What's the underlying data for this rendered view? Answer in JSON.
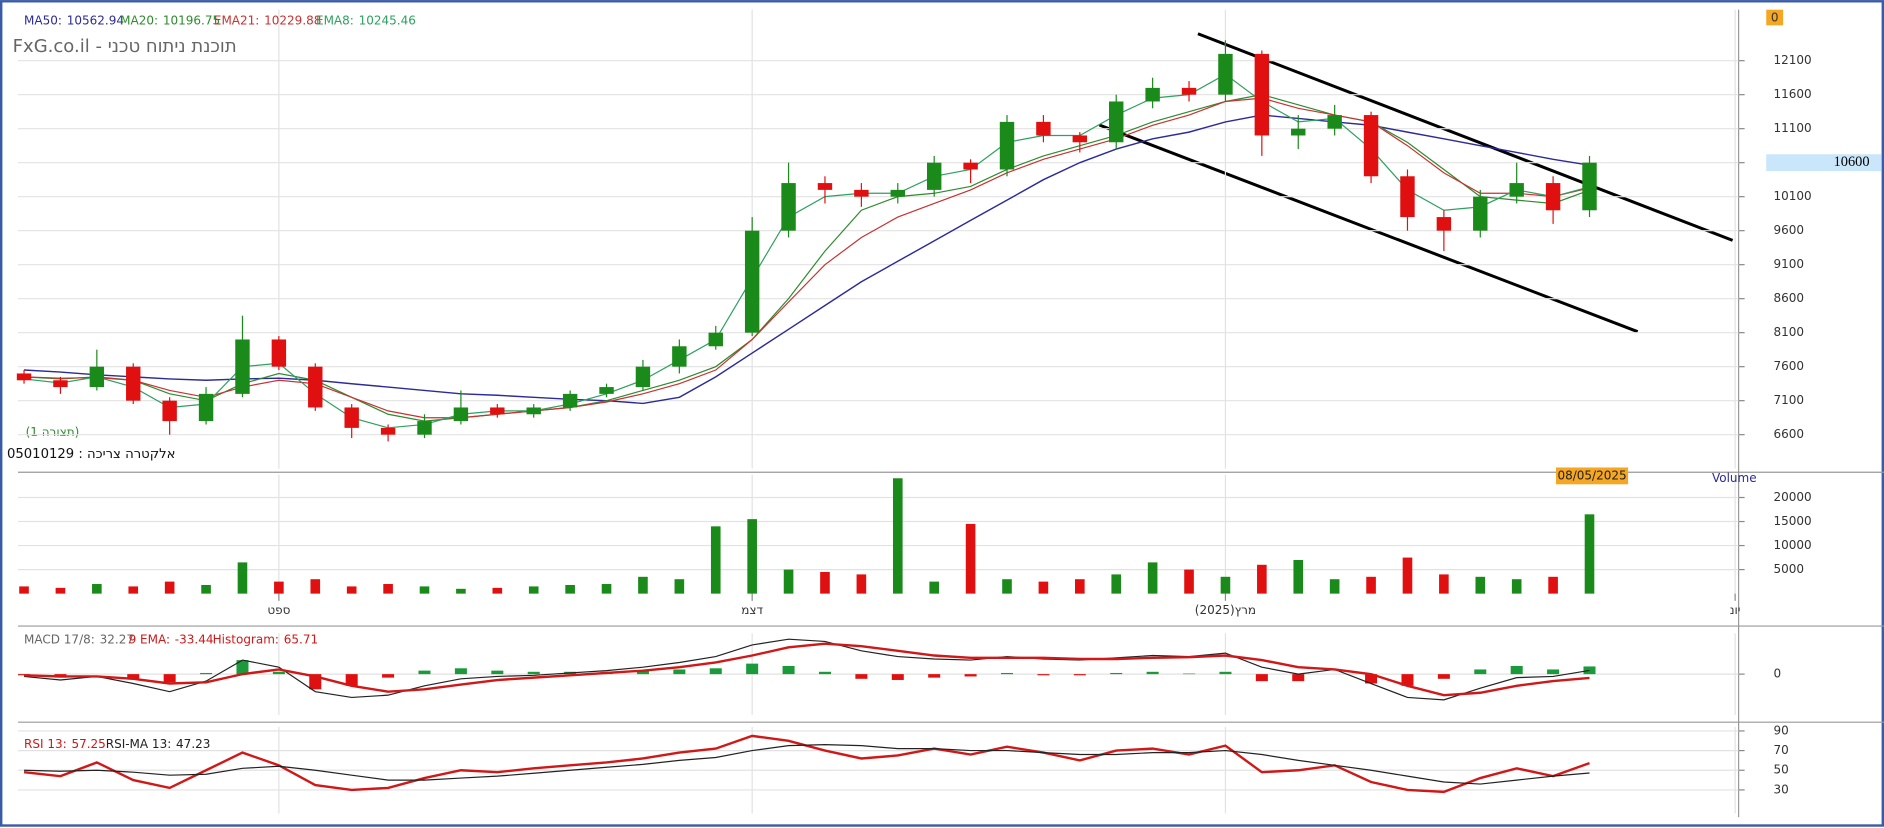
{
  "header": {
    "title": "FxG.co.il - תוכנת ניתוח טכני",
    "layout": "(תצורה 1)",
    "instrument": "אלקטרה צריכה : 05010129",
    "corner": "0",
    "last_date": "08/05/2025"
  },
  "chart_data": [
    {
      "type": "candlestick",
      "up_color": "#1a8a1a",
      "down_color": "#e01010",
      "grid": true,
      "categories": [
        null,
        null,
        null,
        null,
        null,
        null,
        null,
        "ספט",
        null,
        null,
        null,
        null,
        null,
        null,
        null,
        null,
        null,
        null,
        null,
        null,
        "דצמ",
        null,
        null,
        null,
        null,
        null,
        null,
        null,
        null,
        null,
        null,
        null,
        null,
        "מרץ(2025)",
        null,
        null,
        null,
        null,
        null,
        null,
        null,
        null,
        null,
        null,
        null,
        null,
        null,
        "יונ"
      ],
      "open": [
        7500,
        7400,
        7300,
        7600,
        7100,
        6800,
        7200,
        8000,
        7600,
        7000,
        6700,
        6600,
        6800,
        7000,
        6900,
        7000,
        7200,
        7300,
        7600,
        7900,
        8100,
        9600,
        10300,
        10200,
        10100,
        10200,
        10600,
        10500,
        11200,
        11000,
        10900,
        11500,
        11700,
        11600,
        12200,
        11000,
        11100,
        11300,
        10400,
        9800,
        9600,
        10100,
        10300,
        9900,
        null,
        null,
        null,
        null
      ],
      "high": [
        7550,
        7450,
        7850,
        7650,
        7150,
        7300,
        8350,
        8050,
        7650,
        7050,
        6750,
        6900,
        7250,
        7050,
        7050,
        7250,
        7350,
        7700,
        8000,
        8200,
        9800,
        10600,
        10400,
        10300,
        10300,
        10700,
        10650,
        11300,
        11300,
        11050,
        11600,
        11850,
        11800,
        12400,
        12250,
        11300,
        11450,
        11350,
        10500,
        9900,
        10200,
        10600,
        10400,
        10700,
        null,
        null,
        null,
        null
      ],
      "low": [
        7350,
        7200,
        7250,
        7050,
        6600,
        6750,
        7150,
        7550,
        6950,
        6550,
        6500,
        6550,
        6750,
        6850,
        6850,
        6950,
        7150,
        7250,
        7500,
        7850,
        8050,
        9500,
        10000,
        9950,
        10000,
        10100,
        10300,
        10400,
        10900,
        10750,
        10800,
        11400,
        11500,
        11500,
        10700,
        10800,
        11000,
        10300,
        9600,
        9300,
        9500,
        10000,
        9700,
        9800,
        null,
        null,
        null,
        null
      ],
      "close": [
        7400,
        7300,
        7600,
        7100,
        6800,
        7200,
        8000,
        7600,
        7000,
        6700,
        6600,
        6800,
        7000,
        6900,
        7000,
        7200,
        7300,
        7600,
        7900,
        8100,
        9600,
        10300,
        10200,
        10100,
        10200,
        10600,
        10500,
        11200,
        11000,
        10900,
        11500,
        11700,
        11600,
        12200,
        11000,
        11100,
        11300,
        10400,
        9800,
        9600,
        10100,
        10300,
        9900,
        10600,
        null,
        null,
        null,
        null
      ],
      "ylim": [
        6100,
        12850
      ],
      "yticks": [
        6600,
        7100,
        7600,
        8100,
        8600,
        9100,
        9600,
        10100,
        10600,
        11100,
        11600,
        12100
      ],
      "series": [
        {
          "name": "MA50:",
          "color": "#2b2b9a",
          "values": [
            7550,
            7520,
            7480,
            7450,
            7420,
            7400,
            7420,
            7430,
            7400,
            7350,
            7300,
            7250,
            7200,
            7180,
            7150,
            7120,
            7100,
            7060,
            7150,
            7450,
            7800,
            8150,
            8500,
            8850,
            9150,
            9450,
            9750,
            10050,
            10350,
            10600,
            10800,
            10950,
            11050,
            11200,
            11300,
            11250,
            11200,
            11150,
            11050,
            10950,
            10850,
            10750,
            10650,
            10562.94,
            null,
            null,
            null,
            null
          ]
        },
        {
          "name": "MA20:",
          "color": "#2e8b2e",
          "values": [
            7450,
            7420,
            7450,
            7400,
            7200,
            7100,
            7350,
            7500,
            7400,
            7150,
            6900,
            6800,
            6850,
            6900,
            6950,
            7000,
            7100,
            7250,
            7400,
            7600,
            8000,
            8600,
            9300,
            9900,
            10100,
            10150,
            10250,
            10500,
            10700,
            10850,
            11000,
            11200,
            11350,
            11500,
            11600,
            11450,
            11300,
            11200,
            10900,
            10500,
            10100,
            10050,
            10000,
            10196.75,
            null,
            null,
            null,
            null
          ]
        },
        {
          "name": "EMA21:",
          "color": "#c83232",
          "values": [
            7450,
            7430,
            7440,
            7400,
            7250,
            7150,
            7300,
            7400,
            7350,
            7150,
            6950,
            6850,
            6850,
            6900,
            6950,
            7000,
            7080,
            7200,
            7350,
            7550,
            8000,
            8550,
            9100,
            9500,
            9800,
            10000,
            10200,
            10450,
            10650,
            10800,
            10950,
            11150,
            11300,
            11500,
            11550,
            11400,
            11300,
            11200,
            10850,
            10450,
            10150,
            10150,
            10100,
            10229.88,
            null,
            null,
            null,
            null
          ]
        },
        {
          "name": "EMA8:",
          "color": "#2fa060",
          "values": [
            7420,
            7360,
            7450,
            7300,
            7000,
            7050,
            7600,
            7650,
            7200,
            6850,
            6700,
            6750,
            6900,
            6950,
            6950,
            7050,
            7200,
            7400,
            7700,
            8000,
            8900,
            9800,
            10100,
            10150,
            10150,
            10400,
            10500,
            10900,
            11000,
            11000,
            11300,
            11550,
            11600,
            11900,
            11500,
            11200,
            11250,
            10800,
            10200,
            9900,
            9950,
            10200,
            10100,
            10245.46,
            null,
            null,
            null,
            null
          ]
        }
      ]
    },
    {
      "type": "volume",
      "title": "Volume",
      "values": [
        1500,
        1200,
        2000,
        1500,
        2500,
        1800,
        6500,
        2500,
        3000,
        1500,
        2000,
        1500,
        1000,
        1200,
        1500,
        1800,
        2000,
        3500,
        3000,
        14000,
        15500,
        5000,
        4500,
        4000,
        24000,
        2500,
        14500,
        3000,
        2500,
        3000,
        4000,
        6500,
        5000,
        3500,
        6000,
        7000,
        3000,
        3500,
        7500,
        4000,
        3500,
        3000,
        3500,
        16500,
        null,
        null,
        null,
        null
      ],
      "ylim": [
        0,
        24750
      ],
      "yticks": [
        5000,
        10000,
        15000,
        20000
      ]
    },
    {
      "type": "macd",
      "ylim": [
        -350,
        350
      ],
      "yticks": [
        0
      ],
      "series": [
        {
          "name": "MACD 17/8:",
          "color": "#222222",
          "values": [
            -20,
            -50,
            -20,
            -80,
            -150,
            -60,
            120,
            60,
            -150,
            -200,
            -180,
            -100,
            -40,
            -20,
            -10,
            10,
            30,
            60,
            100,
            150,
            250,
            300,
            280,
            200,
            150,
            130,
            120,
            150,
            130,
            120,
            140,
            160,
            150,
            180,
            60,
            0,
            40,
            -80,
            -200,
            -220,
            -120,
            -30,
            -20,
            32.27,
            null,
            null,
            null,
            null
          ]
        },
        {
          "name": "9 EMA:",
          "color": "#d01818",
          "values": [
            -10,
            -20,
            -20,
            -40,
            -80,
            -70,
            0,
            40,
            -20,
            -100,
            -150,
            -130,
            -90,
            -50,
            -30,
            -10,
            10,
            30,
            60,
            100,
            160,
            230,
            260,
            240,
            200,
            160,
            140,
            140,
            140,
            130,
            130,
            140,
            145,
            160,
            120,
            60,
            40,
            0,
            -100,
            -180,
            -160,
            -100,
            -60,
            -33.44,
            null,
            null,
            null,
            null
          ]
        },
        {
          "name": "Histogram:",
          "color": "#d01818",
          "up_color": "#1a9a3a",
          "down_color": "#e01010",
          "values": [
            -10,
            -30,
            0,
            -40,
            -70,
            10,
            120,
            20,
            -130,
            -100,
            -30,
            30,
            50,
            30,
            20,
            20,
            20,
            30,
            40,
            50,
            90,
            70,
            20,
            -40,
            -50,
            -30,
            -20,
            10,
            -10,
            -10,
            10,
            20,
            5,
            20,
            -60,
            -60,
            0,
            -80,
            -100,
            -40,
            40,
            70,
            40,
            65.71,
            null,
            null,
            null,
            null
          ]
        }
      ]
    },
    {
      "type": "line",
      "ylim": [
        6,
        94
      ],
      "yticks": [
        30,
        50,
        70,
        90
      ],
      "series": [
        {
          "name": "RSI 13:",
          "color": "#d01818",
          "values": [
            48,
            44,
            58,
            40,
            32,
            50,
            68,
            55,
            35,
            30,
            32,
            42,
            50,
            48,
            52,
            55,
            58,
            62,
            68,
            72,
            85,
            80,
            70,
            62,
            65,
            72,
            66,
            74,
            68,
            60,
            70,
            72,
            66,
            75,
            48,
            50,
            55,
            38,
            30,
            28,
            42,
            52,
            44,
            57.25,
            null,
            null,
            null,
            null
          ]
        },
        {
          "name": "RSI-MA 13:",
          "color": "#222222",
          "values": [
            50,
            49,
            50,
            48,
            45,
            46,
            52,
            54,
            50,
            45,
            40,
            40,
            42,
            44,
            47,
            50,
            53,
            56,
            60,
            63,
            70,
            75,
            76,
            75,
            72,
            72,
            70,
            70,
            68,
            66,
            66,
            68,
            68,
            70,
            66,
            60,
            55,
            50,
            44,
            38,
            36,
            40,
            44,
            47.23,
            null,
            null,
            null,
            null
          ]
        }
      ]
    }
  ]
}
